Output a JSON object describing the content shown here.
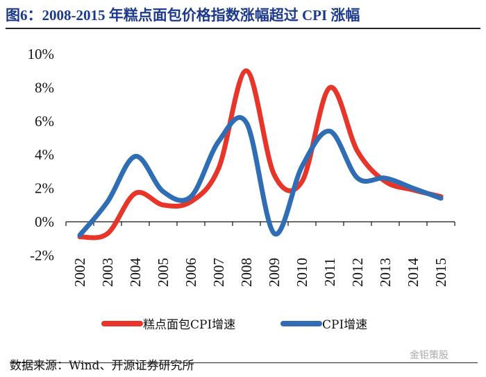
{
  "title": "图6：2008-2015 年糕点面包价格指数涨幅超过 CPI 涨幅",
  "source": "数据来源：Wind、开源证券研究所",
  "watermark": "金钜策股",
  "chart_data": {
    "type": "line",
    "title": "图6：2008-2015 年糕点面包价格指数涨幅超过 CPI 涨幅",
    "xlabel": "",
    "ylabel": "",
    "categories": [
      "2002",
      "2003",
      "2004",
      "2005",
      "2006",
      "2007",
      "2008",
      "2009",
      "2010",
      "2011",
      "2012",
      "2013",
      "2014",
      "2015"
    ],
    "ylim": [
      -2,
      10
    ],
    "yticks": [
      -2,
      0,
      2,
      4,
      6,
      8,
      10
    ],
    "ytick_labels": [
      "-2%",
      "0%",
      "2%",
      "4%",
      "6%",
      "8%",
      "10%"
    ],
    "grid": false,
    "legend_position": "bottom",
    "series": [
      {
        "name": "糕点面包CPI增速",
        "color": "#e8352a",
        "values": [
          -0.9,
          -0.7,
          1.7,
          1.0,
          1.2,
          3.2,
          9.0,
          2.8,
          2.4,
          8.0,
          4.2,
          2.4,
          1.9,
          1.5
        ]
      },
      {
        "name": "CPI增速",
        "color": "#2f6db5",
        "values": [
          -0.8,
          1.2,
          3.9,
          1.8,
          1.5,
          4.8,
          5.9,
          -0.7,
          3.3,
          5.4,
          2.6,
          2.6,
          2.0,
          1.4
        ]
      }
    ]
  }
}
